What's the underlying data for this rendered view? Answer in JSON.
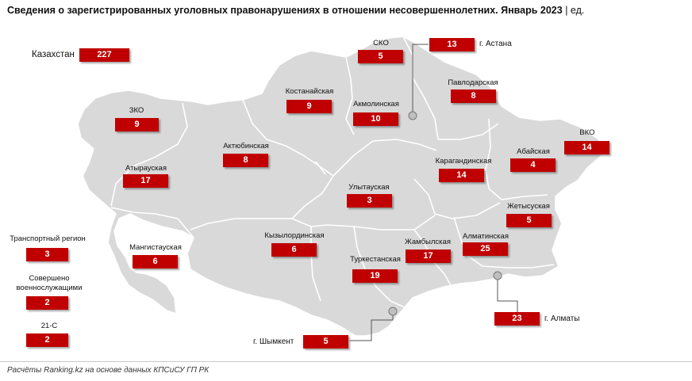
{
  "title": "Сведения о зарегистрированных уголовных правонарушениях в отношении несовершеннолетних. Январь 2023",
  "unit": "| ед.",
  "source": "Расчёты Ranking.kz на основе данных КПСиСУ ГП РК",
  "colors": {
    "map_fill": "#d9d9d9",
    "badge": "#c00000",
    "border": "#ffffff"
  },
  "total": {
    "label": "Казахстан",
    "value": "227"
  },
  "regions": [
    {
      "label": "СКО",
      "value": "5"
    },
    {
      "label": "Павлодарская",
      "value": "8"
    },
    {
      "label": "Костанайская",
      "value": "9"
    },
    {
      "label": "Акмолинская",
      "value": "10"
    },
    {
      "label": "ЗКО",
      "value": "9"
    },
    {
      "label": "Актюбинская",
      "value": "8"
    },
    {
      "label": "ВКО",
      "value": "14"
    },
    {
      "label": "Абайская",
      "value": "4"
    },
    {
      "label": "Карагандинская",
      "value": "14"
    },
    {
      "label": "Атырауская",
      "value": "17"
    },
    {
      "label": "Улытауская",
      "value": "3"
    },
    {
      "label": "Жетысуская",
      "value": "5"
    },
    {
      "label": "Мангистауская",
      "value": "6"
    },
    {
      "label": "Кызылординская",
      "value": "6"
    },
    {
      "label": "Жамбылская",
      "value": "17"
    },
    {
      "label": "Алматинская",
      "value": "25"
    },
    {
      "label": "Туркестанская",
      "value": "19"
    }
  ],
  "cities": [
    {
      "label": "г. Астана",
      "value": "13"
    },
    {
      "label": "г. Алматы",
      "value": "23"
    },
    {
      "label": "г. Шымкент",
      "value": "5"
    }
  ],
  "other": [
    {
      "label": "Транспортный регион",
      "value": "3"
    },
    {
      "label": "Совершено\nвоеннослужащими",
      "value": "2"
    },
    {
      "label": "21-С",
      "value": "2"
    }
  ]
}
